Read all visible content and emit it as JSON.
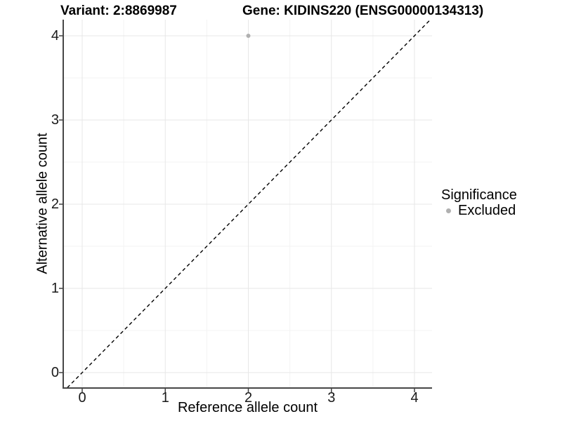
{
  "chart_data": {
    "type": "scatter",
    "title_left": "Variant: 2:8869987",
    "title_right": "Gene: KIDINS220 (ENSG00000134313)",
    "xlabel": "Reference allele count",
    "ylabel": "Alternative allele count",
    "xlim": [
      -0.23,
      4.21
    ],
    "ylim": [
      -0.18,
      4.19
    ],
    "x_ticks": [
      0,
      1,
      2,
      3,
      4
    ],
    "y_ticks": [
      0,
      1,
      2,
      3,
      4
    ],
    "x_minor_ticks": [
      0.5,
      1.5,
      2.5,
      3.5
    ],
    "y_minor_ticks": [
      0.5,
      1.5,
      2.5,
      3.5
    ],
    "grid": "major+minor",
    "legend_position": "right",
    "series": [
      {
        "name": "Excluded",
        "color": "#b0b0b0",
        "points": [
          {
            "x": 2,
            "y": 4
          }
        ]
      }
    ],
    "reference_line": {
      "slope": 1,
      "intercept": 0,
      "linetype": "dashed",
      "color": "#000000"
    }
  },
  "legend": {
    "title": "Significance",
    "items": [
      {
        "label": "Excluded",
        "color": "#b0b0b0"
      }
    ]
  },
  "colors": {
    "background": "#ffffff",
    "grid_major": "#e7e7e7",
    "grid_minor": "#f3f3f3",
    "axis_line": "#474747",
    "tick_mark": "#404040",
    "tick_text": "#1a1a1a",
    "point": "#b0b0b0"
  }
}
